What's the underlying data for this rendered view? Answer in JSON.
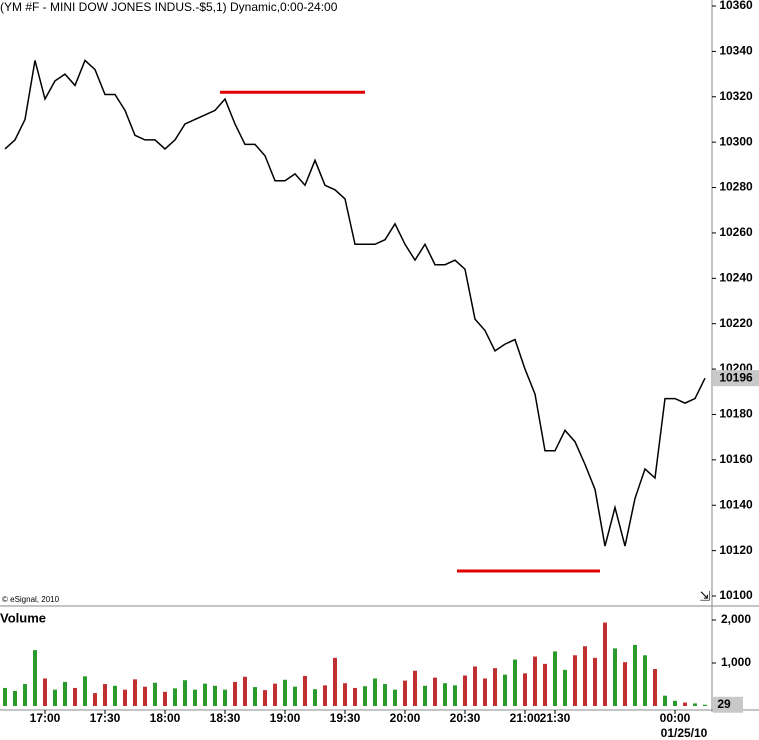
{
  "chart_data": {
    "type": "line",
    "title": "(YM #F - MINI DOW JONES INDUS.-$5,1) Dynamic,0:00-24:00",
    "copyright": "© eSignal, 2010",
    "categories": [
      null,
      null,
      null,
      null,
      "17:00",
      null,
      null,
      null,
      null,
      null,
      "17:30",
      null,
      null,
      null,
      null,
      null,
      "18:00",
      null,
      null,
      null,
      null,
      null,
      "18:30",
      null,
      null,
      null,
      null,
      null,
      "19:00",
      null,
      null,
      null,
      null,
      null,
      "19:30",
      null,
      null,
      null,
      null,
      null,
      "20:00",
      null,
      null,
      null,
      null,
      null,
      "20:30",
      null,
      null,
      null,
      null,
      null,
      "21:00",
      null,
      null,
      "21:30",
      null,
      null,
      null,
      null,
      null,
      null,
      null,
      null,
      null,
      null,
      null,
      "00:00",
      null,
      null,
      null
    ],
    "date_label": "01/25/10",
    "series": [
      {
        "name": "YM #F",
        "color": "#000000",
        "values": [
          10297,
          10301,
          10310,
          10336,
          10319,
          10327,
          10330,
          10325,
          10336,
          10332,
          10321,
          10321,
          10314,
          10303,
          10301,
          10301,
          10297,
          10301,
          10308,
          10310,
          10312,
          10314,
          10319,
          10308,
          10299,
          10299,
          10294,
          10283,
          10283,
          10286,
          10281,
          10292,
          10281,
          10279,
          10275,
          10255,
          10255,
          10255,
          10257,
          10264,
          10255,
          10248,
          10255,
          10246,
          10246,
          10248,
          10244,
          10222,
          10217,
          10208,
          10211,
          10213,
          10200,
          10189,
          10164,
          10164,
          10173,
          10168,
          10158,
          10147,
          10122,
          10139,
          10122,
          10143,
          10156,
          10152,
          10187,
          10187,
          10185,
          10187,
          10196
        ]
      }
    ],
    "ylim": [
      10100,
      10364
    ],
    "yticks": [
      10100,
      10120,
      10140,
      10160,
      10180,
      10200,
      10220,
      10240,
      10260,
      10280,
      10300,
      10320,
      10340,
      10360
    ],
    "current_price": 10196,
    "levels": [
      10322,
      10111
    ],
    "level_color": "#e00000",
    "up_color": "#2a9a2a",
    "down_color": "#c03030",
    "volume": {
      "title": "Volume",
      "color": "#2a9a2a",
      "values": [
        420,
        350,
        510,
        1300,
        640,
        380,
        560,
        420,
        690,
        300,
        510,
        470,
        380,
        620,
        450,
        540,
        330,
        410,
        600,
        380,
        520,
        470,
        380,
        560,
        680,
        440,
        370,
        520,
        610,
        450,
        700,
        390,
        480,
        1120,
        530,
        420,
        460,
        640,
        510,
        380,
        590,
        820,
        470,
        660,
        530,
        480,
        710,
        920,
        640,
        880,
        730,
        1080,
        760,
        1150,
        980,
        1270,
        840,
        1180,
        1390,
        1120,
        1940,
        1340,
        1020,
        1420,
        1180,
        860,
        240,
        120,
        80,
        60,
        29
      ],
      "ylim": [
        0,
        2000
      ],
      "yticks": [
        {
          "value": 1000,
          "label": "1,000"
        },
        {
          "value": 2000,
          "label": "2,000"
        }
      ],
      "current_volume": 29
    }
  }
}
